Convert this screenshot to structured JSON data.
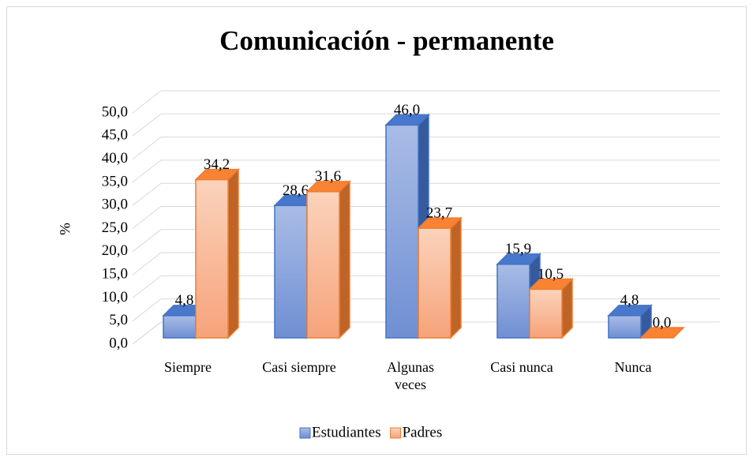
{
  "chart_data": {
    "type": "bar3d",
    "title": "Comunicación - permanente",
    "y_label": "%",
    "categories": [
      "Siempre",
      "Casi siempre",
      "Algunas veces",
      "Casi nunca",
      "Nunca"
    ],
    "series": [
      {
        "name": "Estudiantes",
        "color": "#4472c4",
        "values": [
          4.8,
          28.6,
          46.0,
          15.9,
          4.8
        ],
        "value_labels": [
          "4,8",
          "28,6",
          "46,0",
          "15,9",
          "4,8"
        ]
      },
      {
        "name": "Padres",
        "color": "#ed7d31",
        "values": [
          34.2,
          31.6,
          23.7,
          10.5,
          0.0
        ],
        "value_labels": [
          "34,2",
          "31,6",
          "23,7",
          "10,5",
          "0,0"
        ]
      }
    ],
    "ylim": [
      0,
      50
    ],
    "yticks": [
      {
        "value": 0,
        "label": "0,0"
      },
      {
        "value": 5,
        "label": "5,0"
      },
      {
        "value": 10,
        "label": "10,0"
      },
      {
        "value": 15,
        "label": "15,0"
      },
      {
        "value": 20,
        "label": "20,0"
      },
      {
        "value": 25,
        "label": "25,0"
      },
      {
        "value": 30,
        "label": "30,0"
      },
      {
        "value": 35,
        "label": "35,0"
      },
      {
        "value": 40,
        "label": "40,0"
      },
      {
        "value": 45,
        "label": "45,0"
      },
      {
        "value": 50,
        "label": "50,0"
      }
    ],
    "grid": true,
    "legend": "bottom"
  }
}
